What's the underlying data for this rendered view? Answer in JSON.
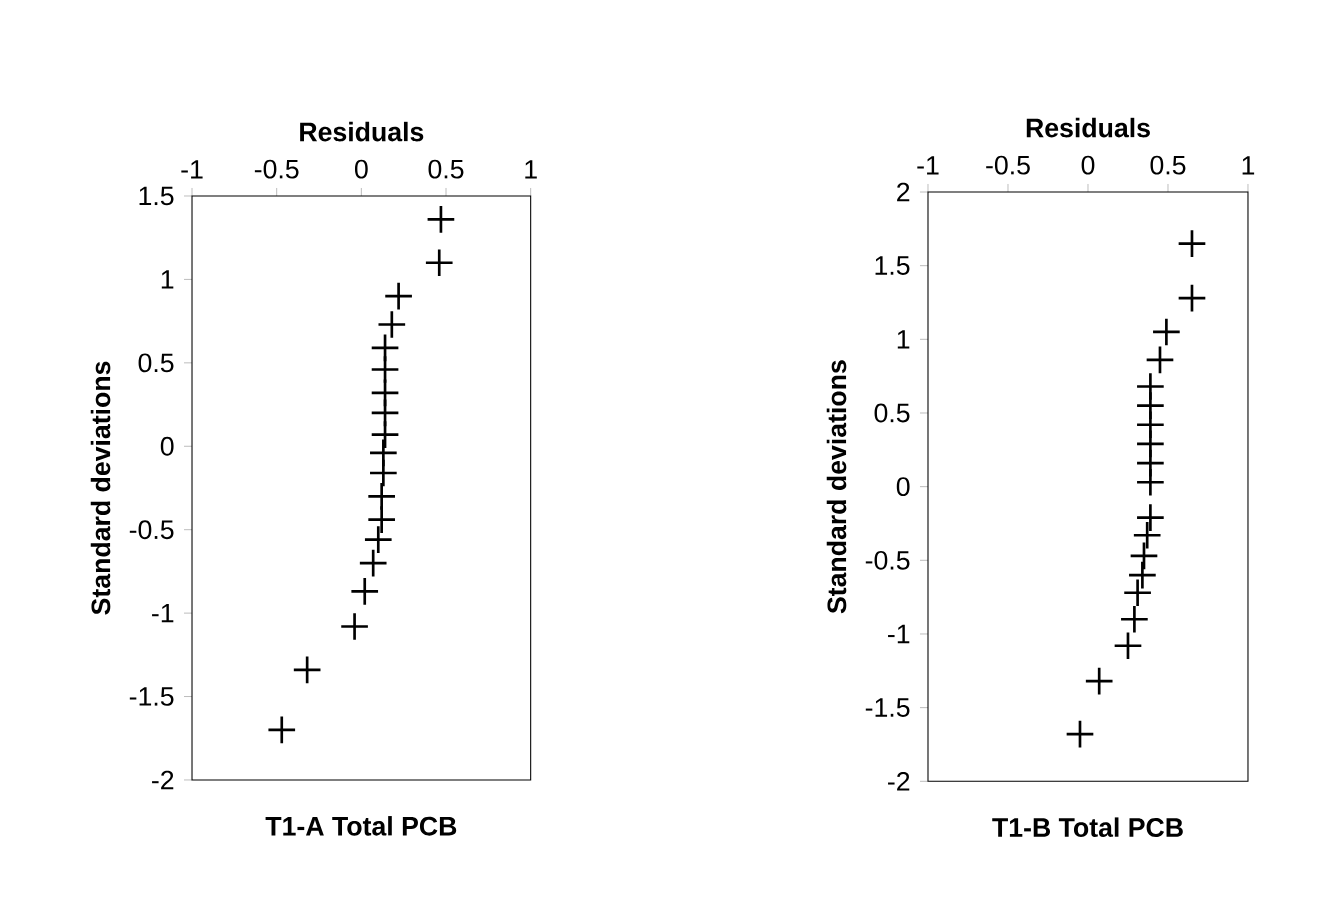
{
  "chart_data": [
    {
      "type": "scatter",
      "title": "T1-A Total PCB",
      "xlabel": "Residuals",
      "ylabel": "Standard deviations",
      "xlim": [
        -1,
        1
      ],
      "xticks": [
        -1,
        -0.5,
        0,
        0.5,
        1
      ],
      "ylim": [
        -2,
        1.5
      ],
      "yticks": [
        -2,
        -1.5,
        -1,
        -0.5,
        0,
        0.5,
        1,
        1.5
      ],
      "marker": "cross",
      "grid": false,
      "series": [
        {
          "color": "#000000",
          "x": [
            0.47,
            0.46,
            0.22,
            0.18,
            0.14,
            0.14,
            0.14,
            0.14,
            0.14,
            0.13,
            0.13,
            0.12,
            0.12,
            0.1,
            0.07,
            0.02,
            -0.04,
            -0.32,
            -0.47
          ],
          "values": [
            1.36,
            1.1,
            0.9,
            0.73,
            0.59,
            0.46,
            0.32,
            0.2,
            0.07,
            -0.04,
            -0.16,
            -0.3,
            -0.44,
            -0.56,
            -0.7,
            -0.87,
            -1.08,
            -1.34,
            -1.7
          ]
        }
      ]
    },
    {
      "type": "scatter",
      "title": "T1-B Total PCB",
      "xlabel": "Residuals",
      "ylabel": "Standard deviations",
      "xlim": [
        -1,
        1
      ],
      "xticks": [
        -1,
        -0.5,
        0,
        0.5,
        1
      ],
      "ylim": [
        -2,
        2
      ],
      "yticks": [
        -2,
        -1.5,
        -1,
        -0.5,
        0,
        0.5,
        1,
        1.5,
        2
      ],
      "marker": "cross",
      "grid": false,
      "series": [
        {
          "color": "#000000",
          "x": [
            0.65,
            0.65,
            0.49,
            0.45,
            0.39,
            0.39,
            0.39,
            0.39,
            0.39,
            0.39,
            0.39,
            0.37,
            0.35,
            0.34,
            0.31,
            0.29,
            0.25,
            0.07,
            -0.05
          ],
          "values": [
            1.65,
            1.28,
            1.05,
            0.86,
            0.68,
            0.55,
            0.42,
            0.29,
            0.16,
            0.03,
            -0.21,
            -0.33,
            -0.47,
            -0.6,
            -0.72,
            -0.9,
            -1.08,
            -1.32,
            -1.68
          ]
        }
      ]
    }
  ]
}
